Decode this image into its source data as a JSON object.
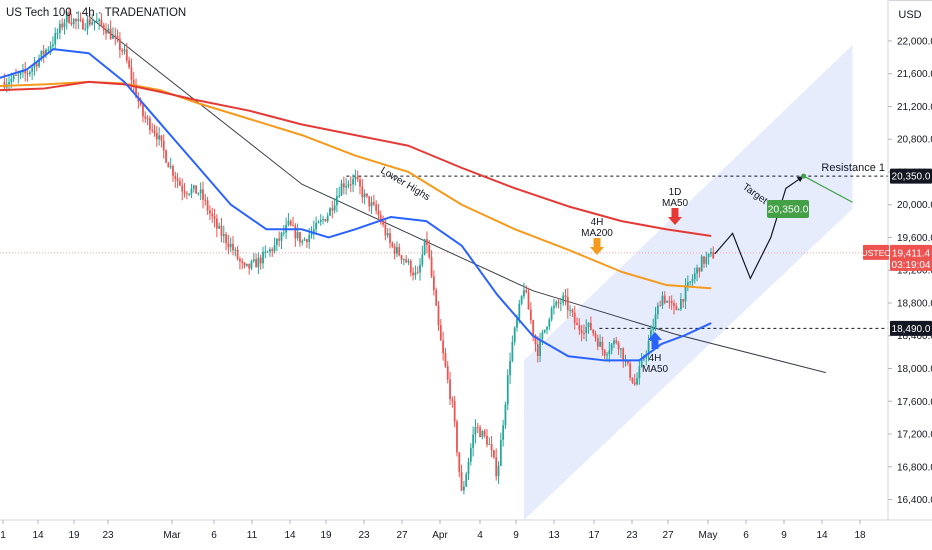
{
  "header": {
    "title": "US Tech 100 · 4h · TRADENATION"
  },
  "colors": {
    "bull": "#26a69a",
    "bear": "#ef5350",
    "ma200_4h": "#f59a1c",
    "ma50_1d": "#e53935",
    "ma50_4h": "#2962ff",
    "channel": "#dde6fb",
    "target": "#43a047",
    "price_line": "#f8a2a2"
  },
  "chart_data": {
    "type": "candlestick",
    "yaxis": {
      "unit": "USD",
      "range": [
        16150,
        22500
      ],
      "ticks": [
        "16,400.0",
        "16,800.0",
        "17,200.0",
        "17,600.0",
        "18,000.0",
        "18,400.0",
        "18,800.0",
        "19,200.0",
        "19,600.0",
        "20,000.0",
        "20,400.0",
        "20,800.0",
        "21,200.0",
        "21,600.0",
        "22,000.0"
      ]
    },
    "xaxis": {
      "ticks": [
        "1",
        "14",
        "19",
        "23",
        "Mar",
        "6",
        "11",
        "14",
        "19",
        "23",
        "27",
        "Apr",
        "4",
        "9",
        "13",
        "17",
        "23",
        "27",
        "May",
        "6",
        "9",
        "14",
        "18"
      ]
    },
    "price_labels": {
      "resistance": "20,350.0",
      "current": "19,411.4",
      "current_sub": "03:19:04",
      "current_symbol": "USTEC",
      "support": "18,490.0"
    },
    "levels": {
      "resistance": {
        "value": 20350,
        "label": "Resistance 1"
      },
      "support": {
        "value": 18490
      },
      "current": {
        "value": 19411.4
      }
    },
    "annotations": {
      "lower_highs": "Lower Highs",
      "ma200_4h": [
        "4H",
        "MA200"
      ],
      "ma50_1d": [
        "1D",
        "MA50"
      ],
      "ma50_4h": [
        "4H",
        "MA50"
      ],
      "target": "Target",
      "target_value": "20,350.0"
    },
    "price_anchors": [
      [
        0.005,
        21500
      ],
      [
        0.03,
        21600
      ],
      [
        0.06,
        22000
      ],
      [
        0.075,
        22300
      ],
      [
        0.09,
        22200
      ],
      [
        0.105,
        22250
      ],
      [
        0.12,
        22150
      ],
      [
        0.14,
        21850
      ],
      [
        0.16,
        21100
      ],
      [
        0.175,
        20900
      ],
      [
        0.19,
        20500
      ],
      [
        0.205,
        20200
      ],
      [
        0.225,
        20150
      ],
      [
        0.245,
        19700
      ],
      [
        0.26,
        19500
      ],
      [
        0.275,
        19200
      ],
      [
        0.29,
        19300
      ],
      [
        0.31,
        19500
      ],
      [
        0.325,
        19750
      ],
      [
        0.34,
        19550
      ],
      [
        0.355,
        19700
      ],
      [
        0.37,
        19900
      ],
      [
        0.385,
        20250
      ],
      [
        0.4,
        20300
      ],
      [
        0.41,
        20100
      ],
      [
        0.425,
        19900
      ],
      [
        0.44,
        19500
      ],
      [
        0.455,
        19350
      ],
      [
        0.47,
        19100
      ],
      [
        0.48,
        19600
      ],
      [
        0.495,
        18400
      ],
      [
        0.51,
        17500
      ],
      [
        0.52,
        16450
      ],
      [
        0.535,
        17300
      ],
      [
        0.55,
        17100
      ],
      [
        0.56,
        16700
      ],
      [
        0.575,
        18200
      ],
      [
        0.59,
        19000
      ],
      [
        0.605,
        18200
      ],
      [
        0.62,
        18700
      ],
      [
        0.635,
        18850
      ],
      [
        0.65,
        18500
      ],
      [
        0.665,
        18500
      ],
      [
        0.68,
        18200
      ],
      [
        0.695,
        18350
      ],
      [
        0.705,
        18050
      ],
      [
        0.715,
        17800
      ],
      [
        0.73,
        18300
      ],
      [
        0.745,
        18900
      ],
      [
        0.76,
        18700
      ],
      [
        0.775,
        19000
      ],
      [
        0.79,
        19300
      ],
      [
        0.805,
        19400
      ]
    ],
    "series": [
      {
        "name": "4H MA200",
        "points": [
          [
            0,
            21450
          ],
          [
            0.05,
            21470
          ],
          [
            0.1,
            21500
          ],
          [
            0.14,
            21480
          ],
          [
            0.18,
            21400
          ],
          [
            0.22,
            21250
          ],
          [
            0.28,
            21050
          ],
          [
            0.34,
            20850
          ],
          [
            0.4,
            20600
          ],
          [
            0.46,
            20400
          ],
          [
            0.52,
            20000
          ],
          [
            0.58,
            19700
          ],
          [
            0.64,
            19450
          ],
          [
            0.7,
            19180
          ],
          [
            0.75,
            19020
          ],
          [
            0.8,
            18980
          ]
        ]
      },
      {
        "name": "1D MA50",
        "points": [
          [
            0,
            21400
          ],
          [
            0.05,
            21420
          ],
          [
            0.1,
            21500
          ],
          [
            0.14,
            21470
          ],
          [
            0.18,
            21380
          ],
          [
            0.22,
            21280
          ],
          [
            0.28,
            21150
          ],
          [
            0.34,
            20980
          ],
          [
            0.4,
            20850
          ],
          [
            0.46,
            20720
          ],
          [
            0.52,
            20450
          ],
          [
            0.58,
            20200
          ],
          [
            0.64,
            19980
          ],
          [
            0.7,
            19800
          ],
          [
            0.75,
            19700
          ],
          [
            0.8,
            19620
          ]
        ]
      },
      {
        "name": "4H MA50",
        "points": [
          [
            0,
            21550
          ],
          [
            0.03,
            21650
          ],
          [
            0.06,
            21900
          ],
          [
            0.1,
            21850
          ],
          [
            0.14,
            21500
          ],
          [
            0.18,
            21000
          ],
          [
            0.22,
            20500
          ],
          [
            0.26,
            20000
          ],
          [
            0.3,
            19700
          ],
          [
            0.34,
            19700
          ],
          [
            0.37,
            19600
          ],
          [
            0.4,
            19700
          ],
          [
            0.44,
            19850
          ],
          [
            0.48,
            19800
          ],
          [
            0.52,
            19500
          ],
          [
            0.56,
            18900
          ],
          [
            0.6,
            18400
          ],
          [
            0.64,
            18150
          ],
          [
            0.68,
            18100
          ],
          [
            0.72,
            18100
          ],
          [
            0.745,
            18300
          ],
          [
            0.77,
            18400
          ],
          [
            0.8,
            18550
          ]
        ]
      }
    ],
    "projection": [
      [
        0.805,
        19400
      ],
      [
        0.825,
        19650
      ],
      [
        0.845,
        19100
      ],
      [
        0.868,
        19600
      ],
      [
        0.885,
        20200
      ],
      [
        0.905,
        20350
      ]
    ],
    "target_line": [
      [
        0.905,
        20350
      ],
      [
        0.96,
        20030
      ]
    ],
    "trendline": [
      [
        0.1,
        22300
      ],
      [
        0.34,
        20250
      ],
      [
        0.6,
        18950
      ],
      [
        0.76,
        18420
      ],
      [
        0.93,
        17950
      ]
    ],
    "channel": [
      [
        0.59,
        18100
      ],
      [
        0.96,
        21950
      ],
      [
        0.96,
        19950
      ],
      [
        0.59,
        16150
      ]
    ]
  }
}
